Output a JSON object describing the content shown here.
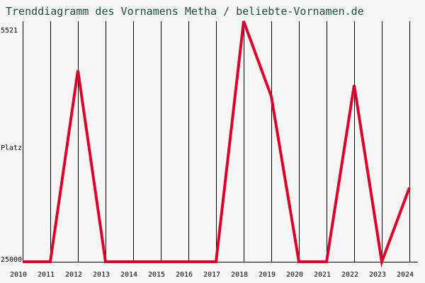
{
  "chart_data": {
    "type": "line",
    "title": "Trenddiagramm des Vornamens Metha / beliebte-Vornamen.de",
    "ylabel": "Platz",
    "y_tick_labels": [
      "5521",
      "25000"
    ],
    "ylim": [
      25000,
      5521
    ],
    "x": [
      "2010",
      "2011",
      "2012",
      "2013",
      "2014",
      "2015",
      "2016",
      "2017",
      "2018",
      "2019",
      "2020",
      "2021",
      "2022",
      "2023",
      "2024"
    ],
    "series": [
      {
        "values": [
          25000,
          25000,
          9500,
          25000,
          25000,
          25000,
          25000,
          25000,
          5521,
          11600,
          25000,
          25000,
          10700,
          25000,
          19000
        ]
      }
    ],
    "grid": {
      "vertical": true,
      "horizontal": false
    },
    "colors": {
      "line": "#d9002c",
      "grid": "#000000",
      "background": "#f5f5f5",
      "title": "#1e4a44"
    }
  }
}
